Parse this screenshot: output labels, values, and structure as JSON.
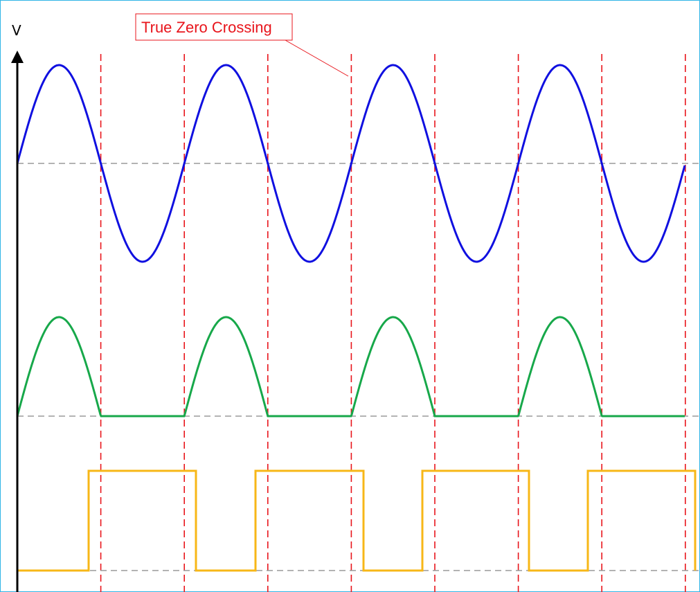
{
  "axis": {
    "y_label": "V"
  },
  "annotation": {
    "text": "True Zero Crossing",
    "color": "#e8141b"
  },
  "colors": {
    "sine": "#1010e0",
    "rectified": "#17a84a",
    "square": "#f7b717",
    "marker": "#e8141b",
    "baseline": "#9a9a9a",
    "frame": "#2fb4e6"
  },
  "chart_data": [
    {
      "type": "line",
      "series": [
        {
          "name": "",
          "shape": "sine",
          "cycles": 4
        }
      ]
    },
    {
      "type": "line",
      "series": [
        {
          "name": "",
          "shape": "half-wave rectified sine",
          "cycles": 4
        }
      ]
    },
    {
      "type": "line",
      "series": [
        {
          "name": "",
          "shape": "square",
          "high_intervals": 4
        }
      ]
    }
  ]
}
